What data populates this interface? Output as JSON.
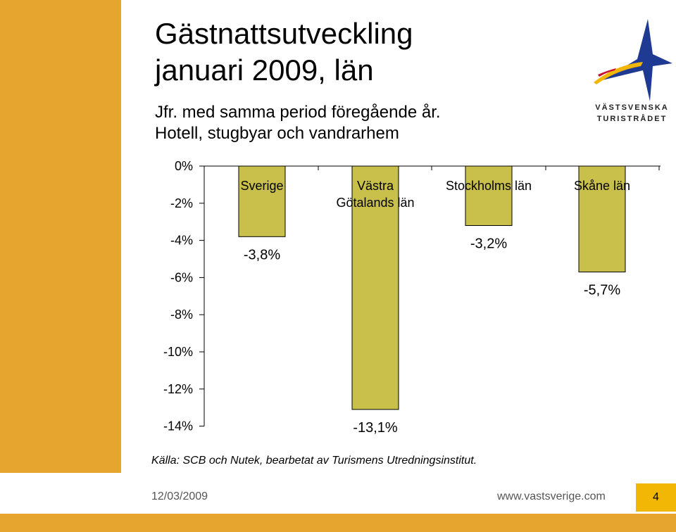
{
  "slide": {
    "title_line1": "Gästnattsutveckling",
    "title_line2": "januari 2009, län",
    "subtitle_line1": "Jfr. med samma period föregående år.",
    "subtitle_line2": "Hotell, stugbyar och vandrarhem",
    "source": "Källa: SCB och Nutek, bearbetat av Turismens Utredningsinstitut.",
    "date": "12/03/2009",
    "url": "www.vastsverige.com",
    "page_number": "4"
  },
  "logo": {
    "line1": "VÄSTSVENSKA",
    "line2": "TURISTRÅDET",
    "icon": "star-logo-icon",
    "colors": {
      "star": "#1f3a93",
      "swoosh": "#f2b705",
      "red": "#c8102e"
    }
  },
  "colors": {
    "bar": "#c8c04a",
    "accent": "#e6a52e",
    "page_box": "#f2b705"
  },
  "chart_data": {
    "type": "bar",
    "categories": [
      "Sverige",
      "Västra Götalands län",
      "Stockholms län",
      "Skåne län"
    ],
    "category_lines": [
      [
        "Sverige"
      ],
      [
        "Västra",
        "Götalands län"
      ],
      [
        "Stockholms län"
      ],
      [
        "Skåne län"
      ]
    ],
    "values": [
      -3.8,
      -13.1,
      -3.2,
      -5.7
    ],
    "data_labels": [
      "-3,8%",
      "-13,1%",
      "-3,2%",
      "-5,7%"
    ],
    "ylim": [
      -14,
      0
    ],
    "yticks": [
      0,
      -2,
      -4,
      -6,
      -8,
      -10,
      -12,
      -14
    ],
    "ytick_labels": [
      "0%",
      "-2%",
      "-4%",
      "-6%",
      "-8%",
      "-10%",
      "-12%",
      "-14%"
    ],
    "grid": false
  }
}
